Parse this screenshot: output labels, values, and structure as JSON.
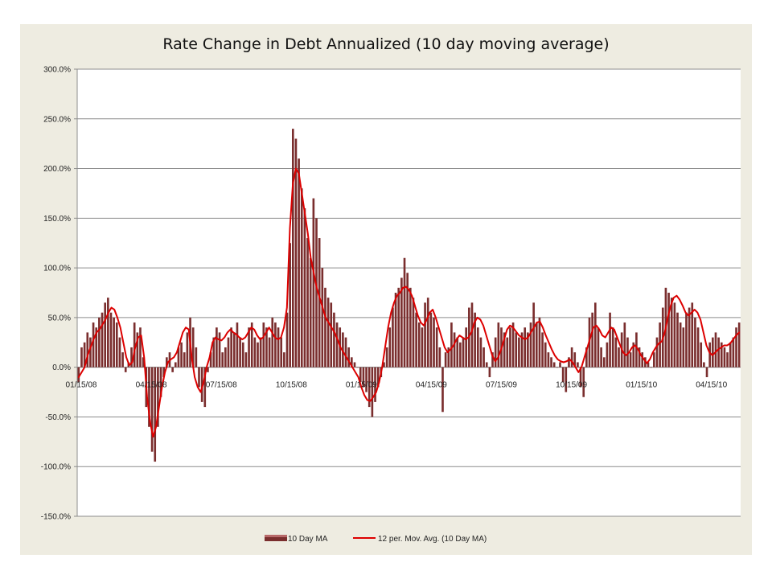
{
  "chart_data": {
    "type": "bar",
    "title": "Rate Change in Debt Annualized (10 day moving average)",
    "xlabel": "",
    "ylabel": "",
    "ylim": [
      -150,
      300
    ],
    "y_tick_labels": [
      "300.0%",
      "250.0%",
      "200.0%",
      "150.0%",
      "100.0%",
      "50.0%",
      "0.0%",
      "-50.0%",
      "-100.0%",
      "-150.0%"
    ],
    "y_tick_values": [
      300,
      250,
      200,
      150,
      100,
      50,
      0,
      -50,
      -100,
      -150
    ],
    "x_tick_labels": [
      "01/15/08",
      "04/15/08",
      "07/15/08",
      "10/15/08",
      "01/15/09",
      "04/15/09",
      "07/15/09",
      "10/15/09",
      "01/15/10",
      "04/15/10"
    ],
    "grid": true,
    "legend_position": "bottom",
    "colors": {
      "bars": "#7a2e2e",
      "bar_highlight": "#b86a6a",
      "line": "#dd0000",
      "background": "#eeece1"
    },
    "series": [
      {
        "name": "10 Day MA",
        "kind": "bar",
        "values": [
          -15,
          20,
          25,
          35,
          30,
          45,
          40,
          50,
          55,
          65,
          70,
          55,
          50,
          45,
          30,
          15,
          -5,
          5,
          20,
          45,
          35,
          40,
          10,
          -40,
          -60,
          -85,
          -95,
          -60,
          -30,
          -10,
          10,
          15,
          -5,
          5,
          20,
          25,
          15,
          35,
          50,
          40,
          20,
          -20,
          -35,
          -40,
          -5,
          15,
          30,
          40,
          35,
          15,
          20,
          30,
          40,
          35,
          45,
          30,
          25,
          15,
          40,
          45,
          30,
          25,
          30,
          45,
          40,
          30,
          50,
          45,
          40,
          30,
          15,
          55,
          125,
          240,
          230,
          210,
          180,
          160,
          130,
          110,
          170,
          150,
          130,
          100,
          80,
          70,
          65,
          55,
          45,
          40,
          35,
          30,
          20,
          10,
          5,
          0,
          -15,
          -20,
          -25,
          -40,
          -50,
          -35,
          -20,
          -10,
          5,
          20,
          40,
          60,
          75,
          80,
          90,
          110,
          95,
          80,
          70,
          55,
          45,
          40,
          65,
          70,
          55,
          50,
          40,
          20,
          -45,
          15,
          20,
          45,
          35,
          30,
          25,
          30,
          40,
          60,
          65,
          55,
          40,
          30,
          20,
          5,
          -10,
          15,
          30,
          45,
          40,
          35,
          30,
          40,
          45,
          35,
          30,
          35,
          40,
          35,
          45,
          65,
          45,
          50,
          35,
          25,
          15,
          10,
          5,
          0,
          5,
          -15,
          -25,
          10,
          20,
          15,
          5,
          -20,
          -30,
          20,
          50,
          55,
          65,
          40,
          20,
          10,
          25,
          55,
          40,
          30,
          20,
          35,
          45,
          30,
          15,
          25,
          35,
          20,
          15,
          10,
          5,
          0,
          15,
          30,
          45,
          60,
          80,
          75,
          70,
          65,
          55,
          45,
          40,
          55,
          60,
          65,
          50,
          40,
          25,
          5,
          -10,
          25,
          30,
          35,
          30,
          25,
          20,
          15,
          25,
          30,
          40,
          45
        ]
      },
      {
        "name": "12 per. Mov. Avg. (10 Day MA)",
        "kind": "line",
        "values": [
          -10,
          -5,
          0,
          12,
          20,
          28,
          35,
          38,
          43,
          48,
          55,
          60,
          58,
          50,
          40,
          25,
          10,
          2,
          5,
          20,
          30,
          32,
          10,
          -30,
          -55,
          -70,
          -60,
          -40,
          -20,
          -5,
          5,
          8,
          10,
          15,
          25,
          35,
          40,
          38,
          10,
          -10,
          -20,
          -25,
          -15,
          0,
          10,
          25,
          30,
          28,
          27,
          30,
          35,
          38,
          35,
          33,
          30,
          28,
          30,
          35,
          40,
          38,
          32,
          28,
          30,
          35,
          40,
          35,
          30,
          28,
          30,
          40,
          60,
          140,
          185,
          200,
          195,
          175,
          155,
          135,
          110,
          95,
          80,
          70,
          60,
          50,
          45,
          40,
          35,
          28,
          20,
          15,
          10,
          5,
          0,
          -5,
          -10,
          -20,
          -28,
          -33,
          -34,
          -30,
          -25,
          -15,
          0,
          20,
          40,
          55,
          65,
          72,
          75,
          80,
          81,
          78,
          72,
          62,
          52,
          45,
          42,
          48,
          55,
          58,
          50,
          40,
          30,
          20,
          15,
          18,
          22,
          28,
          32,
          30,
          28,
          30,
          35,
          45,
          50,
          48,
          42,
          32,
          22,
          12,
          6,
          10,
          18,
          28,
          38,
          42,
          40,
          36,
          32,
          30,
          28,
          30,
          35,
          40,
          45,
          46,
          40,
          32,
          25,
          18,
          12,
          8,
          6,
          5,
          6,
          8,
          5,
          0,
          -5,
          0,
          10,
          20,
          30,
          40,
          42,
          38,
          32,
          30,
          35,
          40,
          38,
          30,
          22,
          15,
          12,
          15,
          20,
          22,
          18,
          12,
          8,
          4,
          8,
          15,
          20,
          24,
          26,
          35,
          50,
          62,
          70,
          72,
          68,
          62,
          55,
          52,
          55,
          58,
          55,
          48,
          35,
          22,
          15,
          12,
          15,
          18,
          20,
          22,
          22,
          24,
          28,
          32,
          35
        ]
      }
    ]
  }
}
